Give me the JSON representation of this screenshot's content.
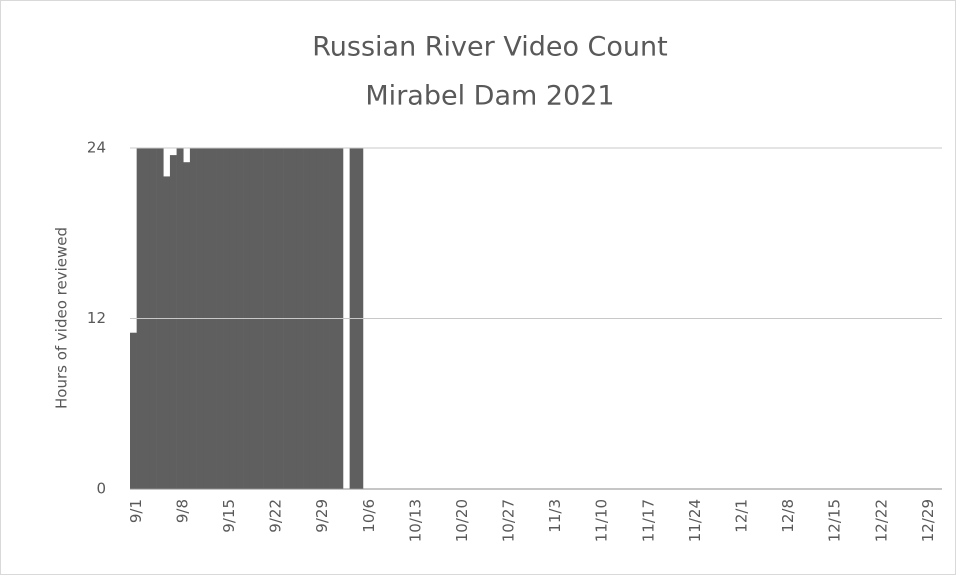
{
  "chart_data": {
    "type": "bar",
    "title": "Russian River Video Count",
    "subtitle": "Mirabel Dam 2021",
    "y_label": "Hours of video reviewed",
    "color": "#5f5f5f",
    "grid": true,
    "ylim": [
      0,
      24
    ],
    "yticks": [
      0,
      12,
      24
    ],
    "categories": [
      "9/1",
      null,
      null,
      null,
      null,
      null,
      null,
      "9/8",
      null,
      null,
      null,
      null,
      null,
      null,
      "9/15",
      null,
      null,
      null,
      null,
      null,
      null,
      "9/22",
      null,
      null,
      null,
      null,
      null,
      null,
      "9/29",
      null,
      null,
      null,
      null,
      null,
      null,
      "10/6",
      null,
      null,
      null,
      null,
      null,
      null,
      "10/13",
      null,
      null,
      null,
      null,
      null,
      null,
      "10/20",
      null,
      null,
      null,
      null,
      null,
      null,
      "10/27",
      null,
      null,
      null,
      null,
      null,
      null,
      "11/3",
      null,
      null,
      null,
      null,
      null,
      null,
      "11/10",
      null,
      null,
      null,
      null,
      null,
      null,
      "11/17",
      null,
      null,
      null,
      null,
      null,
      null,
      "11/24",
      null,
      null,
      null,
      null,
      null,
      null,
      "12/1",
      null,
      null,
      null,
      null,
      null,
      null,
      "12/8",
      null,
      null,
      null,
      null,
      null,
      null,
      "12/15",
      null,
      null,
      null,
      null,
      null,
      null,
      "12/22",
      null,
      null,
      null,
      null,
      null,
      null,
      "12/29",
      null,
      null
    ],
    "values": [
      11,
      24,
      24,
      24,
      24,
      22,
      23.5,
      24,
      23,
      24,
      24,
      24,
      24,
      24,
      24,
      24,
      24,
      24,
      24,
      24,
      24,
      24,
      24,
      24,
      24,
      24,
      24,
      24,
      24,
      24,
      24,
      24,
      0,
      24,
      24,
      0,
      0,
      0,
      0,
      0,
      0,
      0,
      0,
      0,
      0,
      0,
      0,
      0,
      0,
      0,
      0,
      0,
      0,
      0,
      0,
      0,
      0,
      0,
      0,
      0,
      0,
      0,
      0,
      0,
      0,
      0,
      0,
      0,
      0,
      0,
      0,
      0,
      0,
      0,
      0,
      0,
      0,
      0,
      0,
      0,
      0,
      0,
      0,
      0,
      0,
      0,
      0,
      0,
      0,
      0,
      0,
      0,
      0,
      0,
      0,
      0,
      0,
      0,
      0,
      0,
      0,
      0,
      0,
      0,
      0,
      0,
      0,
      0,
      0,
      0,
      0,
      0,
      0,
      0,
      0,
      0,
      0,
      0,
      0,
      0,
      0,
      0
    ]
  }
}
